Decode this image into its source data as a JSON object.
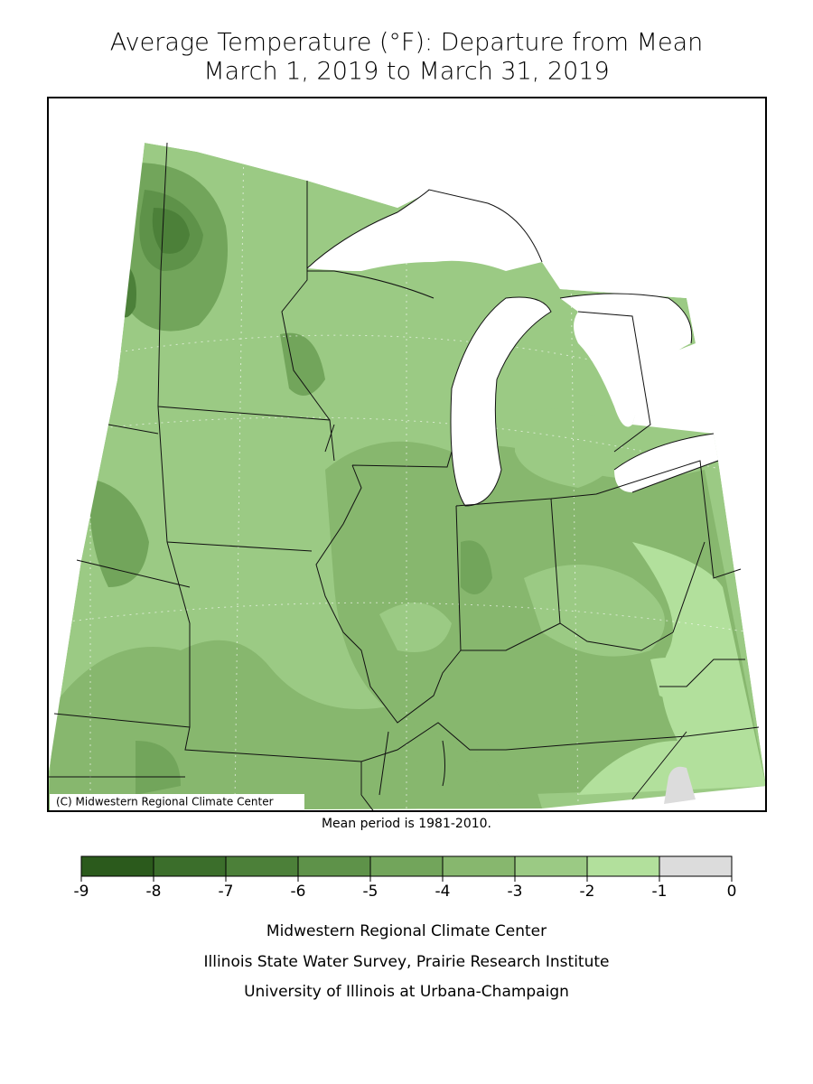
{
  "title": "Average Temperature (°F): Departure from Mean",
  "subtitle": "March 1, 2019 to March 31, 2019",
  "copyright": "(C) Midwestern Regional Climate Center",
  "note": "Mean period is 1981-2010.",
  "legend": {
    "ticks": [
      -9,
      -8,
      -7,
      -6,
      -5,
      -4,
      -3,
      -2,
      -1,
      0
    ],
    "colors": [
      "#2b5a1c",
      "#3b6e2b",
      "#4c8039",
      "#5e9249",
      "#72a55b",
      "#87b76e",
      "#9bca84",
      "#b2e09c",
      "#dcdcdc"
    ]
  },
  "footer": [
    "Midwestern Regional Climate Center",
    "Illinois State Water Survey, Prairie Research Institute",
    "University of Illinois at Urbana-Champaign"
  ]
}
